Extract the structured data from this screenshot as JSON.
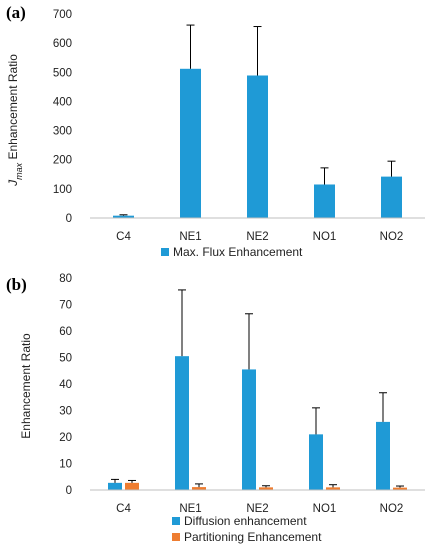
{
  "colors": {
    "blue": "#1f9ad6",
    "orange": "#ee7d31",
    "axis": "#bfbfbf",
    "error": "#000000"
  },
  "chart_data": [
    {
      "type": "bar",
      "panel_label": "(a)",
      "ylabel_main": "J",
      "ylabel_sub": "max",
      "ylabel_rest": " Enhancement Ratio",
      "categories": [
        "C4",
        "NE1",
        "NE2",
        "NO1",
        "NO2"
      ],
      "ylim": [
        0,
        700
      ],
      "yticks": [
        0,
        100,
        200,
        300,
        400,
        500,
        600,
        700
      ],
      "grid": false,
      "legend_position": "bottom",
      "series": [
        {
          "name": "Max. Flux Enhancement",
          "color": "#1f9ad6",
          "values": [
            8,
            512,
            489,
            115,
            142
          ],
          "errors": [
            3,
            150,
            168,
            57,
            53
          ]
        }
      ]
    },
    {
      "type": "bar",
      "panel_label": "(b)",
      "ylabel_main": "Enhancement Ratio",
      "categories": [
        "C4",
        "NE1",
        "NE2",
        "NO1",
        "NO2"
      ],
      "ylim": [
        0,
        80
      ],
      "yticks": [
        0,
        10,
        20,
        30,
        40,
        50,
        60,
        70,
        80
      ],
      "grid": false,
      "legend_position": "bottom",
      "series": [
        {
          "name": "Diffusion enhancement",
          "color": "#1f9ad6",
          "values": [
            2.7,
            50.5,
            45.5,
            21,
            25.7
          ],
          "errors": [
            1.3,
            25,
            21,
            10,
            11
          ]
        },
        {
          "name": "Partitioning Enhancement",
          "color": "#ee7d31",
          "values": [
            2.7,
            1.1,
            1.0,
            1.0,
            0.9
          ],
          "errors": [
            0.9,
            1.2,
            0.6,
            1.0,
            0.6
          ]
        }
      ]
    }
  ]
}
